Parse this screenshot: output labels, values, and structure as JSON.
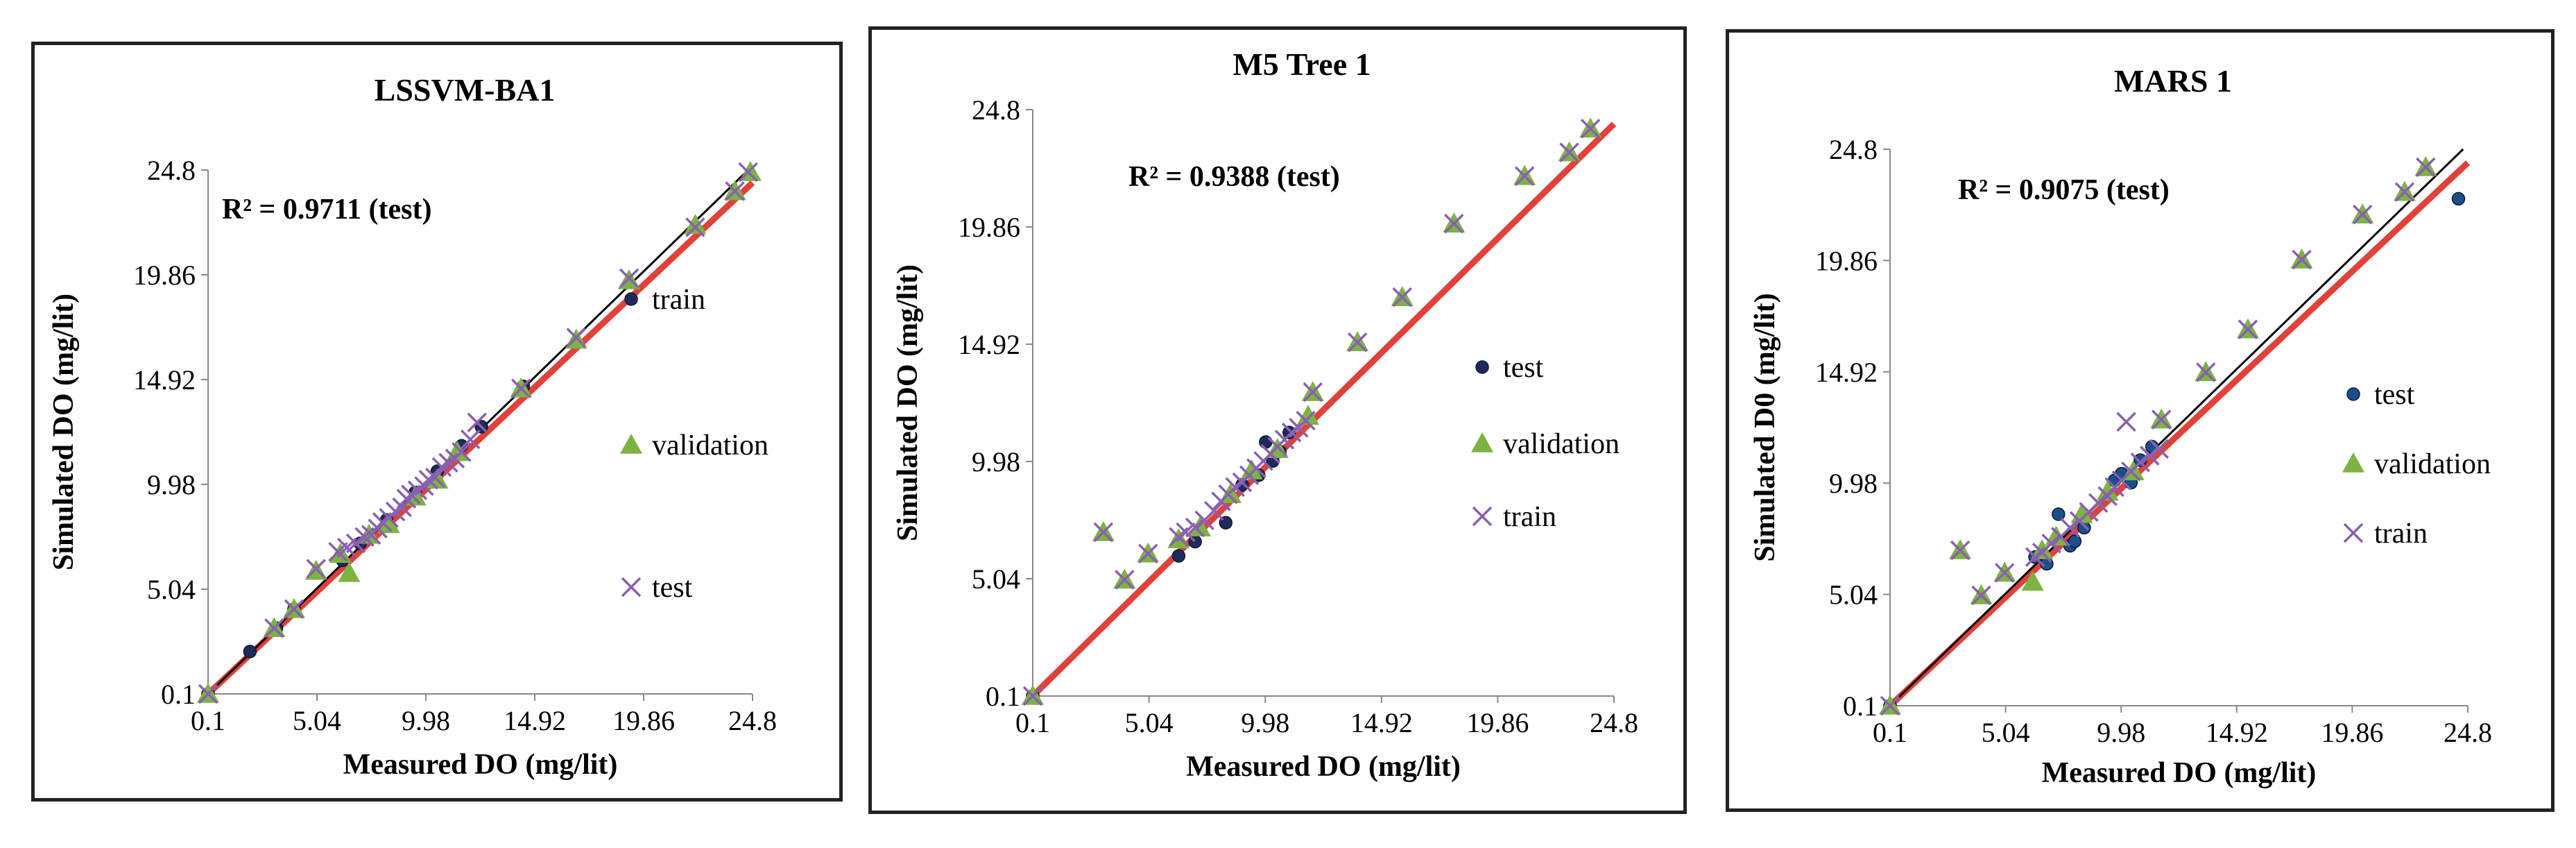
{
  "chart_data": [
    {
      "type": "scatter",
      "title": "LSSVM-BA1",
      "xlabel": "Measured DO (mg/lit)",
      "ylabel": "Simulated DO (mg/lit)",
      "xlim": [
        0.1,
        24.8
      ],
      "ylim": [
        0.1,
        24.8
      ],
      "xticks": [
        "0.1",
        "5.04",
        "9.98",
        "14.92",
        "19.86",
        "24.8"
      ],
      "yticks": [
        "0.1",
        "5.04",
        "9.98",
        "14.92",
        "19.86",
        "24.8"
      ],
      "annotation": "R² = 0.9711 (test)",
      "legend_position": "right",
      "legend": [
        "train",
        "validation",
        "test"
      ],
      "series": [
        {
          "name": "train",
          "marker": "circle",
          "color": "#1f2a5a",
          "points": [
            [
              0.1,
              0.1
            ],
            [
              2.0,
              2.1
            ],
            [
              3.2,
              3.2
            ],
            [
              4.0,
              4.1
            ],
            [
              6.2,
              6.4
            ],
            [
              7.0,
              7.2
            ],
            [
              8.2,
              8.3
            ],
            [
              9.5,
              9.6
            ],
            [
              10.5,
              10.6
            ],
            [
              11.6,
              11.8
            ],
            [
              12.5,
              12.7
            ],
            [
              14.4,
              14.6
            ]
          ]
        },
        {
          "name": "validation",
          "marker": "triangle",
          "color": "#7cb342",
          "points": [
            [
              0.1,
              0.1
            ],
            [
              3.1,
              3.2
            ],
            [
              4.0,
              4.1
            ],
            [
              5.0,
              5.9
            ],
            [
              6.1,
              6.7
            ],
            [
              6.5,
              5.8
            ],
            [
              7.4,
              7.6
            ],
            [
              8.3,
              8.1
            ],
            [
              9.5,
              9.4
            ],
            [
              10.5,
              10.2
            ],
            [
              11.4,
              11.5
            ],
            [
              14.3,
              14.5
            ],
            [
              16.8,
              16.8
            ],
            [
              19.2,
              19.6
            ],
            [
              22.2,
              22.2
            ],
            [
              24.0,
              23.8
            ],
            [
              24.7,
              24.7
            ]
          ]
        },
        {
          "name": "test",
          "marker": "cross",
          "color": "#8b5fb0",
          "points": [
            [
              0.1,
              0.1
            ],
            [
              3.1,
              3.2
            ],
            [
              4.0,
              4.1
            ],
            [
              5.0,
              6.0
            ],
            [
              6.0,
              6.8
            ],
            [
              6.4,
              7.0
            ],
            [
              6.8,
              7.2
            ],
            [
              7.2,
              7.5
            ],
            [
              7.5,
              7.6
            ],
            [
              7.8,
              7.9
            ],
            [
              8.0,
              8.2
            ],
            [
              8.3,
              8.4
            ],
            [
              8.6,
              8.7
            ],
            [
              8.9,
              8.9
            ],
            [
              9.1,
              9.3
            ],
            [
              9.3,
              9.5
            ],
            [
              9.6,
              9.7
            ],
            [
              9.9,
              9.9
            ],
            [
              10.1,
              10.2
            ],
            [
              10.4,
              10.3
            ],
            [
              10.7,
              10.8
            ],
            [
              11.0,
              11.0
            ],
            [
              11.3,
              11.2
            ],
            [
              11.6,
              11.5
            ],
            [
              12.0,
              12.1
            ],
            [
              12.3,
              12.9
            ],
            [
              14.3,
              14.5
            ],
            [
              16.8,
              16.9
            ],
            [
              19.2,
              19.7
            ],
            [
              22.2,
              22.1
            ],
            [
              24.0,
              23.8
            ],
            [
              24.6,
              24.7
            ]
          ]
        }
      ],
      "reference_lines": [
        {
          "name": "1:1 line",
          "color": "#000000"
        },
        {
          "name": "fit",
          "color": "#e0413a"
        }
      ]
    },
    {
      "type": "scatter",
      "title": "M5 Tree 1",
      "xlabel": "Measured DO (mg/lit)",
      "ylabel": "Simulated DO (mg/lit)",
      "xlim": [
        0.1,
        24.8
      ],
      "ylim": [
        0.1,
        24.8
      ],
      "xticks": [
        "0.1",
        "5.04",
        "9.98",
        "14.92",
        "19.86",
        "24.8"
      ],
      "yticks": [
        "0.1",
        "5.04",
        "9.98",
        "14.92",
        "19.86",
        "24.8"
      ],
      "annotation": "R² = 0.9388 (test)",
      "legend_position": "right",
      "legend": [
        "test",
        "validation",
        "train"
      ],
      "series": [
        {
          "name": "test",
          "marker": "circle",
          "color": "#1f2a5a",
          "points": [
            [
              0.1,
              0.1
            ],
            [
              6.3,
              6.0
            ],
            [
              7.0,
              6.6
            ],
            [
              8.3,
              7.4
            ],
            [
              9.0,
              9.0
            ],
            [
              9.7,
              9.4
            ],
            [
              10.0,
              10.8
            ],
            [
              10.3,
              10.0
            ],
            [
              10.6,
              10.4
            ],
            [
              11.0,
              11.2
            ]
          ]
        },
        {
          "name": "validation",
          "marker": "triangle",
          "color": "#7cb342",
          "points": [
            [
              0.1,
              0.1
            ],
            [
              3.1,
              7.0
            ],
            [
              4.0,
              5.0
            ],
            [
              5.0,
              6.1
            ],
            [
              6.3,
              6.7
            ],
            [
              7.2,
              7.2
            ],
            [
              8.5,
              8.6
            ],
            [
              9.4,
              9.6
            ],
            [
              10.5,
              10.5
            ],
            [
              11.8,
              11.9
            ],
            [
              12.0,
              12.9
            ],
            [
              13.9,
              15.0
            ],
            [
              15.8,
              16.9
            ],
            [
              18.0,
              20.0
            ],
            [
              21.0,
              22.0
            ],
            [
              22.9,
              23.0
            ],
            [
              23.8,
              24.0
            ]
          ]
        },
        {
          "name": "train",
          "marker": "cross",
          "color": "#8b5fb0",
          "points": [
            [
              0.1,
              0.1
            ],
            [
              3.1,
              7.0
            ],
            [
              4.0,
              5.0
            ],
            [
              5.0,
              6.1
            ],
            [
              6.3,
              6.8
            ],
            [
              6.6,
              7.0
            ],
            [
              7.0,
              7.2
            ],
            [
              7.4,
              7.5
            ],
            [
              7.8,
              7.9
            ],
            [
              8.1,
              8.3
            ],
            [
              8.4,
              8.6
            ],
            [
              8.7,
              8.9
            ],
            [
              9.0,
              9.1
            ],
            [
              9.3,
              9.4
            ],
            [
              9.6,
              9.7
            ],
            [
              9.9,
              10.0
            ],
            [
              10.2,
              10.3
            ],
            [
              10.5,
              10.6
            ],
            [
              10.8,
              10.9
            ],
            [
              11.1,
              11.2
            ],
            [
              11.4,
              11.4
            ],
            [
              11.7,
              11.7
            ],
            [
              12.0,
              12.9
            ],
            [
              13.9,
              15.0
            ],
            [
              15.8,
              16.9
            ],
            [
              18.0,
              20.0
            ],
            [
              21.0,
              22.0
            ],
            [
              22.9,
              23.0
            ],
            [
              23.8,
              24.0
            ]
          ]
        }
      ],
      "reference_lines": [
        {
          "name": "fit",
          "color": "#e0413a"
        }
      ]
    },
    {
      "type": "scatter",
      "title": "MARS 1",
      "xlabel": "Measured DO (mg/lit)",
      "ylabel": "Simulated D0 (mg/lit)",
      "xlim": [
        0.1,
        24.8
      ],
      "ylim": [
        0.1,
        24.8
      ],
      "xticks": [
        "0.1",
        "5.04",
        "9.98",
        "14.92",
        "19.86",
        "24.8"
      ],
      "yticks": [
        "0.1",
        "5.04",
        "9.98",
        "14.92",
        "19.86",
        "24.8"
      ],
      "annotation": "R² = 0.9075 (test)",
      "legend_position": "right",
      "legend": [
        "test",
        "validation",
        "train"
      ],
      "series": [
        {
          "name": "test",
          "marker": "circle",
          "color": "#1a4f8a",
          "points": [
            [
              0.1,
              0.1
            ],
            [
              6.3,
              6.7
            ],
            [
              6.8,
              6.4
            ],
            [
              7.3,
              8.6
            ],
            [
              7.8,
              7.2
            ],
            [
              8.0,
              7.4
            ],
            [
              8.4,
              8.0
            ],
            [
              9.7,
              10.1
            ],
            [
              10.0,
              10.4
            ],
            [
              10.4,
              10.0
            ],
            [
              10.8,
              11.0
            ],
            [
              11.3,
              11.6
            ],
            [
              24.4,
              22.6
            ]
          ]
        },
        {
          "name": "validation",
          "marker": "triangle",
          "color": "#7cb342",
          "points": [
            [
              0.1,
              0.1
            ],
            [
              3.1,
              7.0
            ],
            [
              4.0,
              5.0
            ],
            [
              5.0,
              6.0
            ],
            [
              6.2,
              5.6
            ],
            [
              6.6,
              7.0
            ],
            [
              7.2,
              7.6
            ],
            [
              8.3,
              8.6
            ],
            [
              9.4,
              9.6
            ],
            [
              10.5,
              10.5
            ],
            [
              11.7,
              12.8
            ],
            [
              13.6,
              14.9
            ],
            [
              15.4,
              16.8
            ],
            [
              17.7,
              19.9
            ],
            [
              20.3,
              21.9
            ],
            [
              22.1,
              22.9
            ],
            [
              23.0,
              24.0
            ]
          ]
        },
        {
          "name": "train",
          "marker": "cross",
          "color": "#8b5fb0",
          "points": [
            [
              0.1,
              0.1
            ],
            [
              3.1,
              7.0
            ],
            [
              4.0,
              5.0
            ],
            [
              5.0,
              6.0
            ],
            [
              6.3,
              6.7
            ],
            [
              6.6,
              6.9
            ],
            [
              7.0,
              7.3
            ],
            [
              7.4,
              7.6
            ],
            [
              7.8,
              8.0
            ],
            [
              8.2,
              8.3
            ],
            [
              8.6,
              8.7
            ],
            [
              9.0,
              9.1
            ],
            [
              9.4,
              9.4
            ],
            [
              9.7,
              9.8
            ],
            [
              10.0,
              10.1
            ],
            [
              10.2,
              12.7
            ],
            [
              10.4,
              10.5
            ],
            [
              10.8,
              10.9
            ],
            [
              11.2,
              11.2
            ],
            [
              11.6,
              11.5
            ],
            [
              11.7,
              12.8
            ],
            [
              13.6,
              14.9
            ],
            [
              15.4,
              16.8
            ],
            [
              17.7,
              19.9
            ],
            [
              20.3,
              21.9
            ],
            [
              22.1,
              22.9
            ],
            [
              23.0,
              24.0
            ]
          ]
        }
      ],
      "reference_lines": [
        {
          "name": "1:1 line",
          "color": "#000000"
        },
        {
          "name": "fit",
          "color": "#e0413a"
        }
      ]
    }
  ]
}
